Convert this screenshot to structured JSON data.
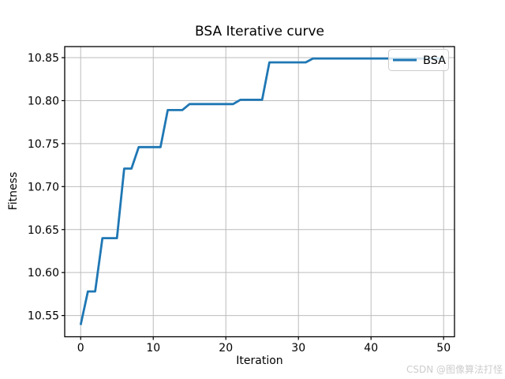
{
  "watermark": {
    "text": "CSDN @图像算法打怪",
    "color": "#cdcdcd"
  },
  "chart_data": {
    "type": "line",
    "title": "BSA Iterative curve",
    "xlabel": "Iteration",
    "ylabel": "Fitness",
    "grid": true,
    "legend": {
      "entries": [
        "BSA"
      ],
      "position": "upper right"
    },
    "line_color": "#1f77b4",
    "background_color": "#ffffff",
    "xlim": [
      -2.2,
      51.5
    ],
    "ylim": [
      10.5253,
      10.8629
    ],
    "xticks": [
      0,
      10,
      20,
      30,
      40,
      50
    ],
    "yticks": [
      10.55,
      10.6,
      10.65,
      10.7,
      10.75,
      10.8,
      10.85
    ],
    "series": [
      {
        "name": "BSA",
        "x": [
          0,
          1,
          2,
          3,
          4,
          5,
          6,
          7,
          8,
          9,
          10,
          11,
          12,
          13,
          14,
          15,
          16,
          17,
          18,
          19,
          20,
          21,
          22,
          23,
          24,
          25,
          26,
          27,
          28,
          29,
          30,
          31,
          32,
          33,
          34,
          35,
          36,
          37,
          38,
          39,
          40,
          41,
          42,
          43,
          44,
          45,
          46,
          47,
          48,
          49,
          50
        ],
        "y": [
          10.539,
          10.578,
          10.578,
          10.64,
          10.64,
          10.64,
          10.721,
          10.721,
          10.746,
          10.746,
          10.746,
          10.746,
          10.789,
          10.789,
          10.789,
          10.796,
          10.796,
          10.796,
          10.796,
          10.796,
          10.796,
          10.796,
          10.801,
          10.801,
          10.801,
          10.801,
          10.8445,
          10.8445,
          10.8445,
          10.8445,
          10.8445,
          10.8445,
          10.849,
          10.849,
          10.849,
          10.849,
          10.849,
          10.849,
          10.849,
          10.849,
          10.849,
          10.849,
          10.849,
          10.849,
          10.849,
          10.849,
          10.849,
          10.849,
          10.849,
          10.849,
          10.849
        ]
      }
    ]
  }
}
